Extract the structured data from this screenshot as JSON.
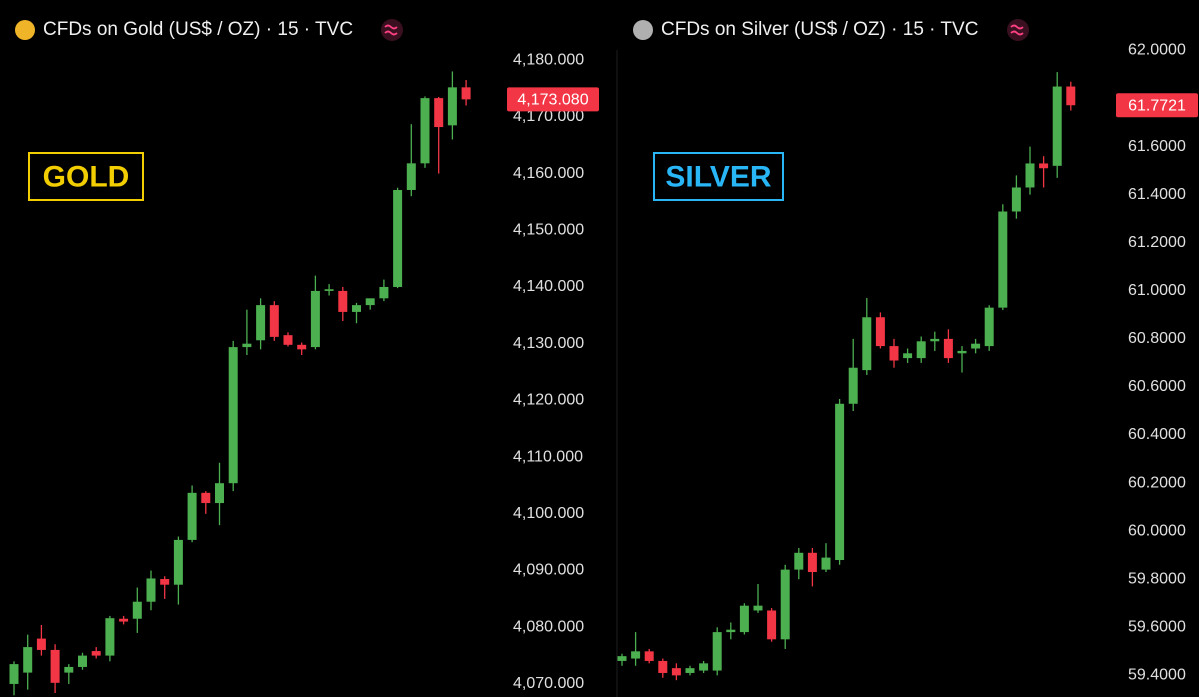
{
  "chart_data": [
    {
      "type": "candlestick",
      "title": "CFDs on Gold (US$ / OZ) · 15 · TVC",
      "annotation": "GOLD",
      "annotation_color": "#f2cd00",
      "up_color": "#4caf50",
      "down_color": "#f23645",
      "ylim": [
        4067.7,
        4190.6
      ],
      "yticks": [
        {
          "value": 4070,
          "label": "4,070.000"
        },
        {
          "value": 4080,
          "label": "4,080.000"
        },
        {
          "value": 4090,
          "label": "4,090.000"
        },
        {
          "value": 4100,
          "label": "4,100.000"
        },
        {
          "value": 4110,
          "label": "4,110.000"
        },
        {
          "value": 4120,
          "label": "4,120.000"
        },
        {
          "value": 4130,
          "label": "4,130.000"
        },
        {
          "value": 4140,
          "label": "4,140.000"
        },
        {
          "value": 4150,
          "label": "4,150.000"
        },
        {
          "value": 4160,
          "label": "4,160.000"
        },
        {
          "value": 4170,
          "label": "4,170.000"
        },
        {
          "value": 4180,
          "label": "4,180.000"
        }
      ],
      "last_price": {
        "value": 4173.08,
        "label": "4,173.080"
      },
      "open": [
        4070.0,
        4072.0,
        4078.0,
        4076.0,
        4072.0,
        4073.0,
        4075.8,
        4075.0,
        4081.5,
        4081.5,
        4084.5,
        4088.5,
        4087.5,
        4095.4,
        4103.7,
        4101.9,
        4105.4,
        4129.4,
        4130.6,
        4136.8,
        4131.5,
        4129.8,
        4129.4,
        4139.3,
        4139.3,
        4135.6,
        4136.8,
        4138.0,
        4140.0,
        4157.1,
        4161.8,
        4173.3,
        4168.5,
        4175.2
      ],
      "high": [
        4074.0,
        4078.7,
        4080.4,
        4077.0,
        4073.5,
        4075.5,
        4076.5,
        4082.0,
        4082.0,
        4087.0,
        4090.0,
        4089.0,
        4096.0,
        4105.0,
        4104.0,
        4109.0,
        4130.5,
        4136.0,
        4138.0,
        4137.5,
        4132.0,
        4130.2,
        4142.0,
        4140.5,
        4140.0,
        4137.2,
        4137.5,
        4141.3,
        4157.5,
        4168.7,
        4173.6,
        4173.5,
        4178.0,
        4176.5
      ],
      "low": [
        4068.0,
        4069.0,
        4075.0,
        4068.4,
        4070.0,
        4072.5,
        4074.5,
        4074.0,
        4080.5,
        4079.0,
        4083.0,
        4085.0,
        4084.0,
        4095.0,
        4100.0,
        4098.0,
        4104.0,
        4128.0,
        4129.0,
        4130.5,
        4129.5,
        4128.0,
        4129.0,
        4138.5,
        4134.0,
        4133.6,
        4136.0,
        4137.5,
        4139.8,
        4156.0,
        4161.0,
        4160.0,
        4166.0,
        4172.0
      ],
      "close": [
        4073.5,
        4076.5,
        4076.0,
        4070.2,
        4073.0,
        4075.0,
        4075.0,
        4081.6,
        4081.0,
        4084.5,
        4088.6,
        4087.5,
        4095.4,
        4103.7,
        4101.9,
        4105.4,
        4129.4,
        4130.0,
        4136.8,
        4131.2,
        4129.8,
        4129.0,
        4139.3,
        4139.6,
        4135.6,
        4136.8,
        4138.0,
        4140.0,
        4157.1,
        4161.8,
        4173.3,
        4168.2,
        4175.2,
        4173.08
      ]
    },
    {
      "type": "candlestick",
      "title": "CFDs on Silver (US$ / OZ) · 15 · TVC",
      "annotation": "SILVER",
      "annotation_color": "#29b6f6",
      "up_color": "#4caf50",
      "down_color": "#f23645",
      "ylim": [
        59.31,
        62.21
      ],
      "yticks": [
        {
          "value": 59.4,
          "label": "59.4000"
        },
        {
          "value": 59.6,
          "label": "59.6000"
        },
        {
          "value": 59.8,
          "label": "59.8000"
        },
        {
          "value": 60.0,
          "label": "60.0000"
        },
        {
          "value": 60.2,
          "label": "60.2000"
        },
        {
          "value": 60.4,
          "label": "60.4000"
        },
        {
          "value": 60.6,
          "label": "60.6000"
        },
        {
          "value": 60.8,
          "label": "60.8000"
        },
        {
          "value": 61.0,
          "label": "61.0000"
        },
        {
          "value": 61.2,
          "label": "61.2000"
        },
        {
          "value": 61.4,
          "label": "61.4000"
        },
        {
          "value": 61.6,
          "label": "61.6000"
        },
        {
          "value": 62.0,
          "label": "62.0000"
        }
      ],
      "last_price": {
        "value": 61.7721,
        "label": "61.7721"
      },
      "open": [
        59.46,
        59.47,
        59.5,
        59.46,
        59.43,
        59.41,
        59.42,
        59.42,
        59.58,
        59.58,
        59.67,
        59.67,
        59.55,
        59.84,
        59.91,
        59.84,
        59.88,
        60.53,
        60.67,
        60.89,
        60.77,
        60.72,
        60.72,
        60.79,
        60.8,
        60.74,
        60.76,
        60.77,
        60.93,
        61.33,
        61.43,
        61.53,
        61.52,
        61.85
      ],
      "high": [
        59.49,
        59.58,
        59.51,
        59.47,
        59.45,
        59.44,
        59.46,
        59.6,
        59.62,
        59.7,
        59.78,
        59.68,
        59.86,
        59.93,
        59.93,
        59.95,
        60.55,
        60.8,
        60.97,
        60.91,
        60.8,
        60.76,
        60.81,
        60.83,
        60.84,
        60.77,
        60.8,
        60.94,
        61.36,
        61.48,
        61.6,
        61.56,
        61.91,
        61.87
      ],
      "low": [
        59.44,
        59.44,
        59.45,
        59.39,
        59.38,
        59.4,
        59.41,
        59.4,
        59.55,
        59.57,
        59.66,
        59.54,
        59.51,
        59.8,
        59.77,
        59.83,
        59.86,
        60.5,
        60.65,
        60.76,
        60.68,
        60.7,
        60.7,
        60.75,
        60.7,
        60.66,
        60.74,
        60.75,
        60.92,
        61.3,
        61.4,
        61.43,
        61.47,
        61.75
      ],
      "close": [
        59.48,
        59.5,
        59.46,
        59.41,
        59.4,
        59.43,
        59.45,
        59.58,
        59.59,
        59.69,
        59.69,
        59.55,
        59.84,
        59.91,
        59.83,
        59.89,
        60.53,
        60.68,
        60.89,
        60.77,
        60.71,
        60.74,
        60.79,
        60.8,
        60.72,
        60.75,
        60.78,
        60.93,
        61.33,
        61.43,
        61.53,
        61.51,
        61.85,
        61.7721
      ]
    }
  ]
}
